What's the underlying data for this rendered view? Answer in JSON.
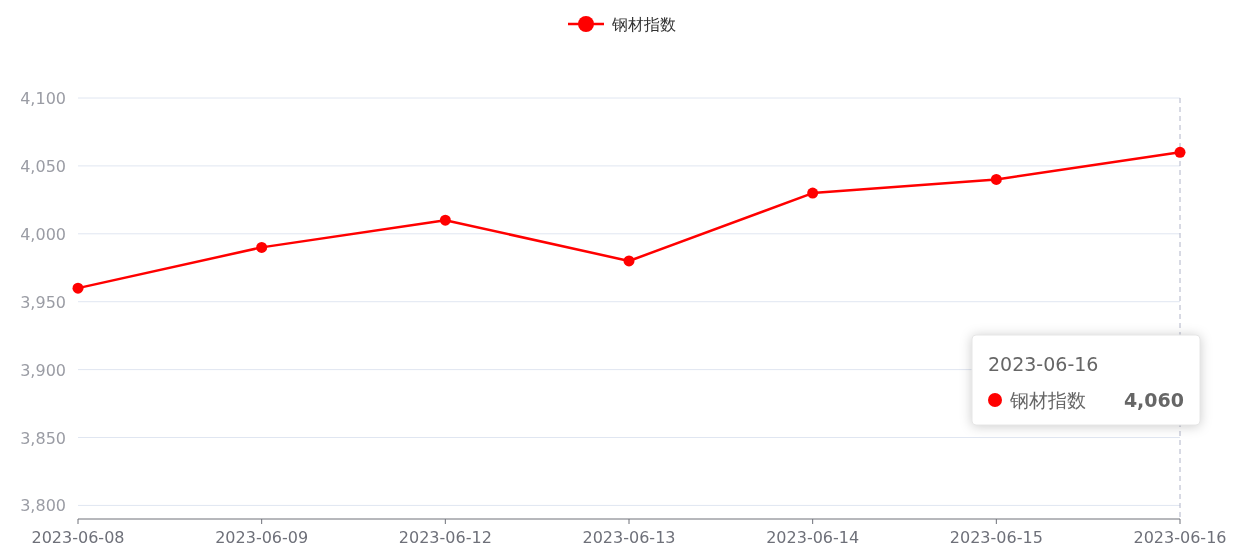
{
  "chart_data": {
    "type": "line",
    "categories": [
      "2023-06-08",
      "2023-06-09",
      "2023-06-12",
      "2023-06-13",
      "2023-06-14",
      "2023-06-15",
      "2023-06-16"
    ],
    "series": [
      {
        "name": "钢材指数",
        "color": "#ff0000",
        "values": [
          3960,
          3990,
          4010,
          3980,
          4030,
          4040,
          4060
        ]
      }
    ],
    "ylim": [
      3790,
      4100
    ],
    "yticks": [
      {
        "value": 3800,
        "label": "3,800"
      },
      {
        "value": 3850,
        "label": "3,850"
      },
      {
        "value": 3900,
        "label": "3,900"
      },
      {
        "value": 3950,
        "label": "3,950"
      },
      {
        "value": 4000,
        "label": "4,000"
      },
      {
        "value": 4050,
        "label": "4,050"
      },
      {
        "value": 4100,
        "label": "4,100"
      }
    ],
    "grid": "y",
    "legend": "top",
    "marker": "circle",
    "line_style": "solid",
    "ref_lines": [
      {
        "axis": "x",
        "value": "2023-06-16",
        "color": "#b0b4c8",
        "line_style": "dashed"
      }
    ],
    "annotations": [
      "2023-06-16",
      "钢材指数",
      "4,060"
    ]
  }
}
